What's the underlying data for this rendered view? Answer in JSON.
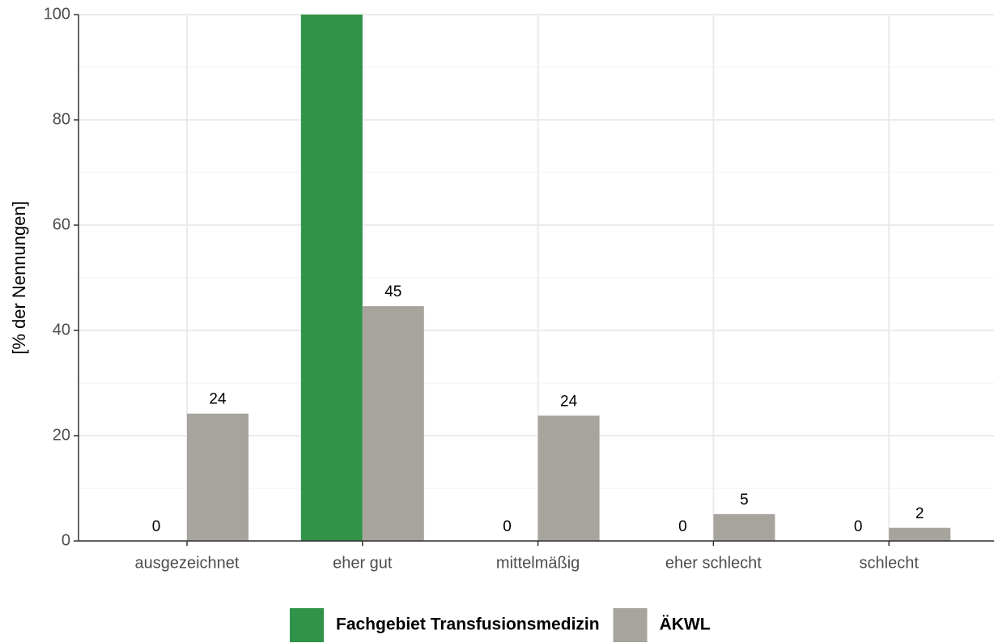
{
  "chart_data": {
    "type": "bar",
    "y_label": "[% der Nennungen]",
    "categories": [
      "ausgezeichnet",
      "eher gut",
      "mittelmäßig",
      "eher schlecht",
      "schlecht"
    ],
    "series": [
      {
        "name": "Fachgebiet Transfusionsmedizin",
        "color": "#31934a",
        "values": [
          0,
          100,
          0,
          0,
          0
        ],
        "value_labels": [
          "0",
          null,
          "0",
          "0",
          "0"
        ]
      },
      {
        "name": "ÄKWL",
        "color": "#a7a49d",
        "values": [
          24.2,
          44.6,
          23.8,
          5.1,
          2.5
        ],
        "value_labels": [
          "24",
          "45",
          "24",
          "5",
          "2"
        ]
      }
    ],
    "ylim": [
      0,
      100
    ],
    "yticks": [
      0,
      20,
      40,
      60,
      80,
      100
    ],
    "grid": true,
    "legend": "bottom"
  }
}
